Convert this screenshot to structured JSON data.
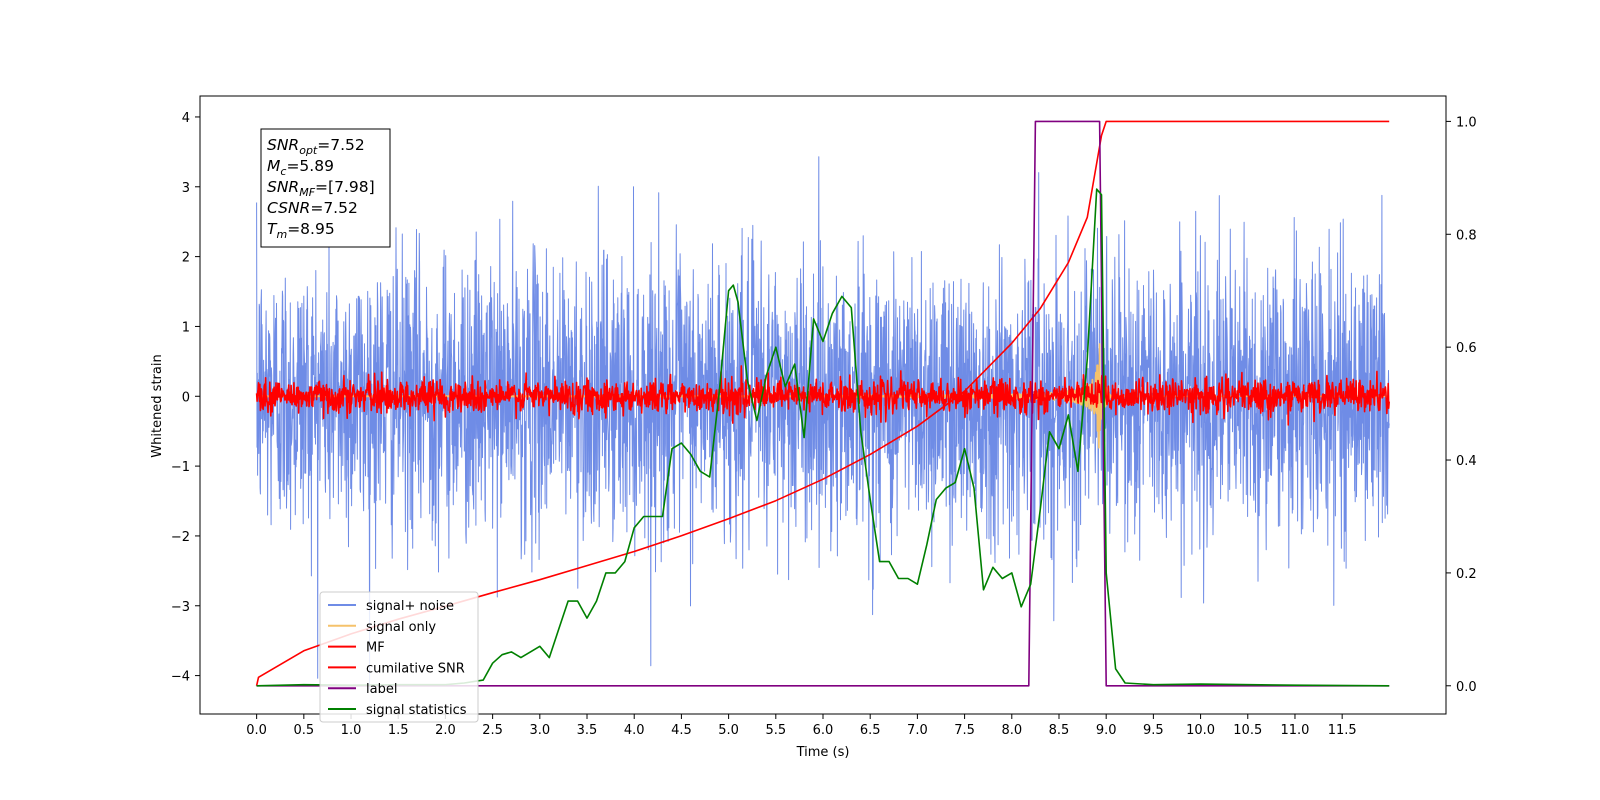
{
  "chart_data": {
    "type": "line",
    "title": "",
    "xlabel": "Time (s)",
    "ylabel": "Whitened strain",
    "y2label": "",
    "xlim": [
      -0.6,
      12.6
    ],
    "ylim": [
      -4.55,
      4.3
    ],
    "y2lim": [
      -0.05,
      1.045
    ],
    "xticks": [
      0.0,
      0.5,
      1.0,
      1.5,
      2.0,
      2.5,
      3.0,
      3.5,
      4.0,
      4.5,
      5.0,
      5.5,
      6.0,
      6.5,
      7.0,
      7.5,
      8.0,
      8.5,
      9.0,
      9.5,
      10.0,
      10.5,
      11.0,
      11.5
    ],
    "xtick_labels": [
      "0.0",
      "0.5",
      "1.0",
      "1.5",
      "2.0",
      "2.5",
      "3.0",
      "3.5",
      "4.0",
      "4.5",
      "5.0",
      "5.5",
      "6.0",
      "6.5",
      "7.0",
      "7.5",
      "8.0",
      "8.5",
      "9.0",
      "9.5",
      "10.0",
      "10.5",
      "11.0",
      "11.5"
    ],
    "yticks": [
      -4,
      -3,
      -2,
      -1,
      0,
      1,
      2,
      3,
      4
    ],
    "ytick_labels": [
      "−4",
      "−3",
      "−2",
      "−1",
      "0",
      "1",
      "2",
      "3",
      "4"
    ],
    "y2ticks": [
      0.0,
      0.2,
      0.4,
      0.6,
      0.8,
      1.0
    ],
    "y2tick_labels": [
      "0.0",
      "0.2",
      "0.4",
      "0.6",
      "0.8",
      "1.0"
    ],
    "grid": false,
    "legend_position": "bottom-left",
    "series": [
      {
        "name": "signal+ noise",
        "color": "#6f8ce6",
        "axis": "left",
        "kind": "noise",
        "t_start": 0.0,
        "t_end": 11.998,
        "spread": 1.0,
        "peak": 3.55
      },
      {
        "name": "signal only",
        "color": "#f5c26b",
        "axis": "left",
        "kind": "chirp",
        "t_start": 0.0,
        "t_end": 11.998,
        "merger_time": 8.95,
        "peak_amplitude": 0.75
      },
      {
        "name": "MF",
        "color": "#ff0000",
        "axis": "left",
        "kind": "mf",
        "t_start": 0.0,
        "t_end": 11.998,
        "spread": 0.12,
        "peak": 0.45
      },
      {
        "name": "cumilative SNR",
        "color": "#ff0000",
        "axis": "right",
        "x": [
          0.0,
          0.02,
          0.5,
          1.0,
          1.5,
          2.0,
          2.5,
          3.0,
          3.5,
          4.0,
          4.5,
          5.0,
          5.5,
          6.0,
          6.5,
          7.0,
          7.5,
          8.0,
          8.3,
          8.6,
          8.8,
          8.95,
          9.0,
          11.998
        ],
        "y": [
          0.0,
          0.015,
          0.062,
          0.092,
          0.118,
          0.141,
          0.165,
          0.188,
          0.213,
          0.238,
          0.266,
          0.296,
          0.328,
          0.366,
          0.41,
          0.46,
          0.522,
          0.607,
          0.668,
          0.75,
          0.83,
          0.975,
          1.0,
          1.0
        ]
      },
      {
        "name": "label",
        "color": "#800080",
        "axis": "right",
        "x": [
          0.0,
          8.18,
          8.25,
          8.93,
          9.0,
          11.998
        ],
        "y": [
          0.0,
          0.0,
          1.0,
          1.0,
          0.0,
          0.0
        ]
      },
      {
        "name": "signal statistics",
        "color": "#008000",
        "axis": "right",
        "x": [
          0.0,
          0.5,
          1.0,
          1.5,
          2.0,
          2.2,
          2.4,
          2.5,
          2.6,
          2.7,
          2.8,
          2.9,
          3.0,
          3.1,
          3.2,
          3.3,
          3.4,
          3.5,
          3.6,
          3.7,
          3.8,
          3.9,
          4.0,
          4.1,
          4.2,
          4.3,
          4.4,
          4.5,
          4.6,
          4.7,
          4.8,
          4.9,
          5.0,
          5.05,
          5.1,
          5.2,
          5.3,
          5.4,
          5.5,
          5.6,
          5.7,
          5.8,
          5.9,
          6.0,
          6.1,
          6.2,
          6.3,
          6.4,
          6.5,
          6.6,
          6.7,
          6.8,
          6.9,
          7.0,
          7.1,
          7.2,
          7.3,
          7.4,
          7.5,
          7.6,
          7.7,
          7.8,
          7.9,
          8.0,
          8.1,
          8.2,
          8.3,
          8.4,
          8.5,
          8.6,
          8.7,
          8.8,
          8.9,
          8.95,
          9.0,
          9.1,
          9.2,
          9.5,
          10.0,
          11.0,
          11.998
        ],
        "y": [
          0.0,
          0.002,
          0.001,
          0.002,
          0.002,
          0.005,
          0.01,
          0.04,
          0.055,
          0.06,
          0.05,
          0.06,
          0.07,
          0.05,
          0.1,
          0.15,
          0.15,
          0.12,
          0.15,
          0.2,
          0.2,
          0.22,
          0.28,
          0.3,
          0.3,
          0.3,
          0.42,
          0.43,
          0.41,
          0.38,
          0.37,
          0.52,
          0.7,
          0.71,
          0.68,
          0.54,
          0.47,
          0.55,
          0.6,
          0.53,
          0.57,
          0.44,
          0.65,
          0.61,
          0.66,
          0.69,
          0.67,
          0.45,
          0.33,
          0.22,
          0.22,
          0.19,
          0.19,
          0.18,
          0.25,
          0.33,
          0.35,
          0.36,
          0.42,
          0.35,
          0.17,
          0.21,
          0.19,
          0.2,
          0.14,
          0.18,
          0.31,
          0.45,
          0.42,
          0.48,
          0.38,
          0.58,
          0.88,
          0.87,
          0.2,
          0.03,
          0.005,
          0.002,
          0.003,
          0.001,
          0.0
        ]
      }
    ],
    "annotation": {
      "lines": [
        {
          "var": "SNR",
          "sub": "opt",
          "text": "=7.52"
        },
        {
          "var": "M",
          "sub": "c",
          "text": "=5.89"
        },
        {
          "var": "SNR",
          "sub": "MF",
          "text": "=[7.98]"
        },
        {
          "var": "CSNR",
          "sub": "",
          "text": "=7.52"
        },
        {
          "var": "T",
          "sub": "m",
          "text": "=8.95"
        }
      ]
    }
  }
}
